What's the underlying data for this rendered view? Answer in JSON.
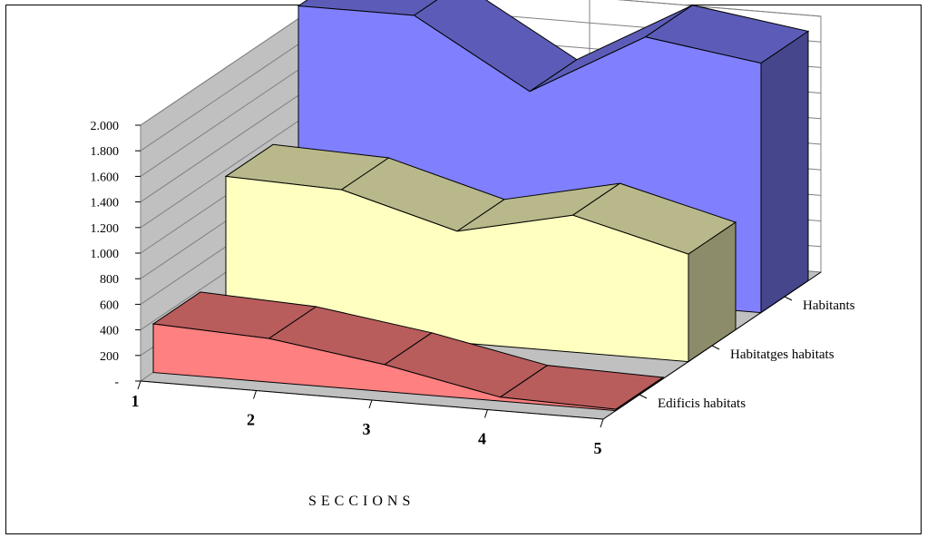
{
  "chart_data": {
    "type": "area",
    "title": "",
    "xlabel": "SECCIONS",
    "ylabel": "",
    "ylim": [
      0,
      2000
    ],
    "yticks": [
      "-",
      "200",
      "400",
      "600",
      "800",
      "1.000",
      "1.200",
      "1.400",
      "1.600",
      "1.800",
      "2.000"
    ],
    "categories": [
      "1",
      "2",
      "3",
      "4",
      "5"
    ],
    "series": [
      {
        "name": "Habitants",
        "values": [
          2100,
          2100,
          1580,
          2080,
          1950
        ],
        "color": "#8080ff"
      },
      {
        "name": "Habitatges habitats",
        "values": [
          1150,
          1120,
          870,
          1070,
          840
        ],
        "color": "#ffffc0"
      },
      {
        "name": "Edificis habitats",
        "values": [
          380,
          340,
          210,
          30,
          10
        ],
        "color": "#ff8080"
      }
    ],
    "grid": true,
    "legend": "right, along depth axis"
  }
}
